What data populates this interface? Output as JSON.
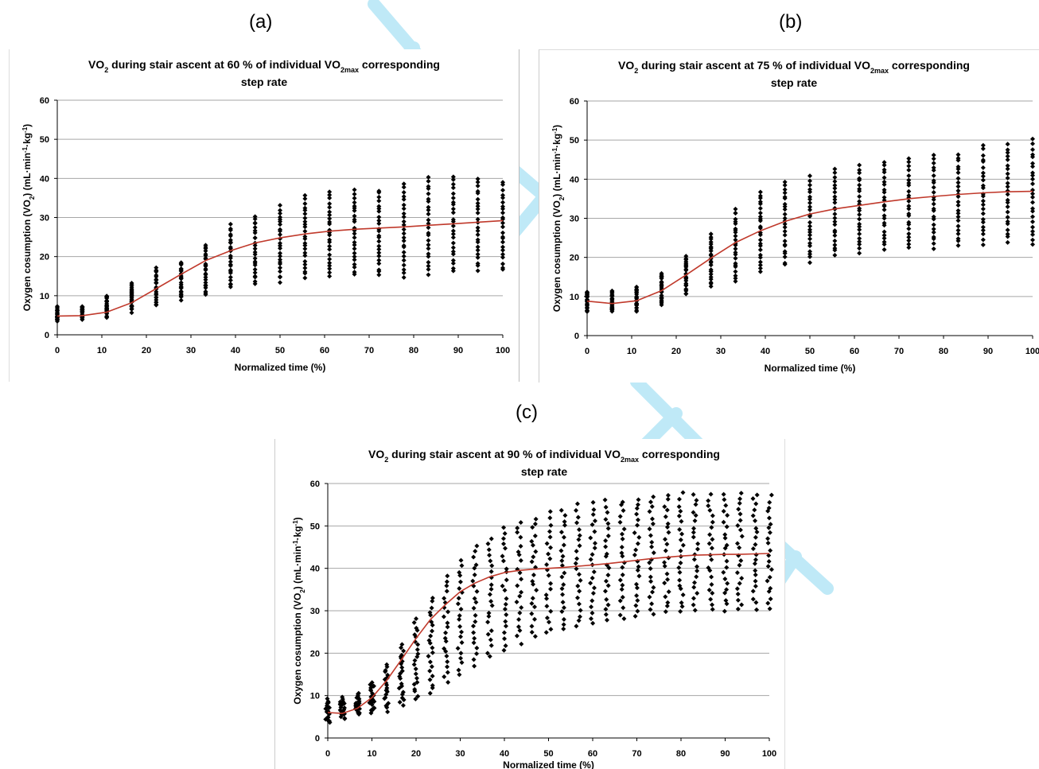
{
  "labels": {
    "a": "(a)",
    "b": "(b)",
    "c": "(c)"
  },
  "colors": {
    "fit_line": "#c0392b",
    "points": "#000000",
    "grid": "#a6a6a6",
    "watermark": "#bfe9f7"
  },
  "chart_data": [
    {
      "type": "scatter",
      "title_line1_pre": "VO",
      "title_line1_sub": "2",
      "title_line1_mid": " during stair ascent at 60 % of individual VO",
      "title_line1_sub2": "2max",
      "title_line1_post": " corresponding",
      "title_line2": "step rate",
      "xlabel": "Normalized time (%)",
      "ylabel_pre": "Oxygen cosumption (VO",
      "ylabel_sub": "2",
      "ylabel_post": ") (mL·min",
      "ylabel_sup1": "-1",
      "ylabel_mid": "·kg",
      "ylabel_sup2": "-1",
      "ylabel_end": ")",
      "xlim": [
        0,
        100
      ],
      "ylim": [
        0,
        60
      ],
      "xticks": [
        "0",
        "10",
        "20",
        "30",
        "40",
        "50",
        "60",
        "70",
        "80",
        "90",
        "100"
      ],
      "yticks": [
        "0",
        "10",
        "20",
        "30",
        "40",
        "50",
        "60"
      ],
      "grid": true,
      "x": [
        0,
        5.6,
        11.1,
        16.7,
        22.2,
        27.8,
        33.3,
        38.9,
        44.4,
        50,
        55.6,
        61.1,
        66.7,
        72.2,
        77.8,
        83.3,
        88.9,
        94.4,
        100
      ],
      "point_range_min": [
        3.5,
        4,
        4.5,
        6,
        7.5,
        9,
        10,
        12,
        13,
        13.5,
        14.5,
        15,
        15.5,
        15,
        15,
        15.5,
        16,
        16.5,
        16.5
      ],
      "point_range_max": [
        7,
        7.5,
        10,
        13,
        17,
        18.5,
        23,
        28,
        30.5,
        33,
        35.5,
        36.5,
        37,
        37,
        38.5,
        40.5,
        40.5,
        40,
        39
      ],
      "fit_line": [
        4.8,
        4.9,
        5.8,
        8.2,
        11.8,
        15.5,
        19,
        21.5,
        23.5,
        24.8,
        25.8,
        26.5,
        27,
        27.3,
        27.6,
        28,
        28.4,
        28.8,
        29.2
      ]
    },
    {
      "type": "scatter",
      "title_line1_pre": "VO",
      "title_line1_sub": "2",
      "title_line1_mid": " during stair ascent at 75 % of individual VO",
      "title_line1_sub2": "2max",
      "title_line1_post": " corresponding",
      "title_line2": "step rate",
      "xlabel": "Normalized time (%)",
      "ylabel_pre": "Oxygen cosumption (VO",
      "ylabel_sub": "2",
      "ylabel_post": ") (mL·min",
      "ylabel_sup1": "-1",
      "ylabel_mid": "·kg",
      "ylabel_sup2": "-1",
      "ylabel_end": ")",
      "xlim": [
        0,
        100
      ],
      "ylim": [
        0,
        60
      ],
      "xticks": [
        "0",
        "10",
        "20",
        "30",
        "40",
        "50",
        "60",
        "70",
        "80",
        "90",
        "100"
      ],
      "yticks": [
        "0",
        "10",
        "20",
        "30",
        "40",
        "50",
        "60"
      ],
      "grid": true,
      "x": [
        0,
        5.6,
        11.1,
        16.7,
        22.2,
        27.8,
        33.3,
        38.9,
        44.4,
        50,
        55.6,
        61.1,
        66.7,
        72.2,
        77.8,
        83.3,
        88.9,
        94.4,
        100
      ],
      "point_range_min": [
        6,
        6,
        6.5,
        8,
        10.5,
        12.5,
        14,
        16.5,
        18,
        19,
        20.5,
        21,
        22,
        22.5,
        22.5,
        23,
        23.5,
        24,
        23.5
      ],
      "point_range_max": [
        11.5,
        11.5,
        12.5,
        16,
        20.5,
        26,
        32.5,
        37,
        39.5,
        40.5,
        42.5,
        43.5,
        44.5,
        45,
        46,
        46.5,
        48.5,
        49,
        50
      ],
      "fit_line": [
        8.8,
        8.2,
        8.9,
        11.5,
        15.5,
        19.8,
        23.8,
        26.8,
        29.2,
        31.1,
        32.4,
        33.3,
        34.2,
        35,
        35.6,
        36.1,
        36.5,
        36.8,
        36.9
      ]
    },
    {
      "type": "scatter",
      "title_line1_pre": "VO",
      "title_line1_sub": "2",
      "title_line1_mid": " during stair ascent at 90 % of individual VO",
      "title_line1_sub2": "2max",
      "title_line1_post": " corresponding",
      "title_line2": "step rate",
      "xlabel": "Normalized time (%)",
      "ylabel_pre": "Oxygen cosumption (VO",
      "ylabel_sub": "2",
      "ylabel_post": ") (mL·min",
      "ylabel_sup1": "-1",
      "ylabel_mid": "·kg",
      "ylabel_sup2": "-1",
      "ylabel_end": ")",
      "xlim": [
        0,
        100
      ],
      "ylim": [
        0,
        60
      ],
      "xticks": [
        "0",
        "10",
        "20",
        "30",
        "40",
        "50",
        "60",
        "70",
        "80",
        "90",
        "100"
      ],
      "yticks": [
        "0",
        "10",
        "20",
        "30",
        "40",
        "50",
        "60"
      ],
      "grid": true,
      "x": [
        0,
        3.3,
        6.7,
        10,
        13.3,
        16.7,
        20,
        23.3,
        26.7,
        30,
        33.3,
        36.7,
        40,
        43.3,
        46.7,
        50,
        53.3,
        56.7,
        60,
        63.3,
        66.7,
        70,
        73.3,
        76.7,
        80,
        83.3,
        86.7,
        90,
        93.3,
        96.7,
        100
      ],
      "point_range_min": [
        3.5,
        4.5,
        5.5,
        6,
        6.5,
        7.5,
        9,
        10.5,
        13,
        15,
        17,
        19,
        20.5,
        22.5,
        24,
        24.5,
        25.5,
        26,
        27,
        27.5,
        28,
        28.5,
        29,
        29.5,
        29.5,
        30,
        30,
        30,
        30,
        30.5,
        30.5
      ],
      "point_range_max": [
        9,
        9.5,
        10.5,
        13,
        17,
        22,
        28,
        33,
        38,
        42,
        45,
        47,
        50,
        51,
        52,
        53,
        54,
        55,
        55.5,
        56,
        56,
        56.5,
        57,
        57.5,
        57.5,
        57.5,
        57.5,
        57.5,
        58,
        57.5,
        57
      ],
      "fit_line": [
        6,
        5.8,
        7,
        9.5,
        13.5,
        18.5,
        23.5,
        28,
        31.5,
        34.5,
        36.5,
        38,
        39,
        39.5,
        39.8,
        40,
        40.2,
        40.5,
        40.8,
        41.1,
        41.5,
        41.9,
        42.3,
        42.6,
        42.9,
        43.1,
        43.2,
        43.3,
        43.3,
        43.4,
        43.5
      ]
    }
  ]
}
